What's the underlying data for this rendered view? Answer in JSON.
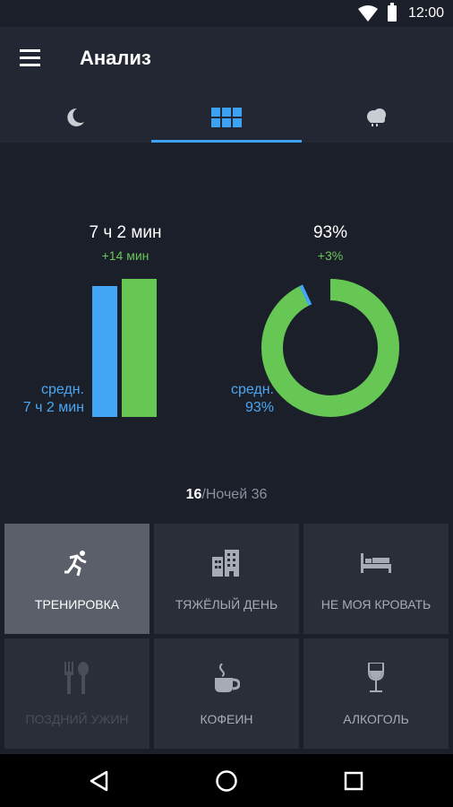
{
  "status_bar": {
    "time": "12:00"
  },
  "app_bar": {
    "title": "Анализ",
    "menu_icon": "hamburger-menu-icon"
  },
  "tabs": [
    {
      "icon": "moon-icon",
      "active": false
    },
    {
      "icon": "grid-icon",
      "active": true
    },
    {
      "icon": "weather-cloud-icon",
      "active": false
    }
  ],
  "duration": {
    "value": "7 ч 2 мин",
    "delta": "+14 мин",
    "avg_label": "средн.",
    "avg_value": "7 ч 2 мин",
    "bars": {
      "average": 0.95,
      "current": 1.0
    }
  },
  "quality": {
    "value": "93%",
    "delta": "+3%",
    "avg_label": "средн.",
    "avg_value": "93%",
    "ring_current": 0.93,
    "ring_average": 0.93
  },
  "nights": {
    "current": "16",
    "rest": "/Ночей 36"
  },
  "tags": [
    {
      "label": "ТРЕНИРОВКА",
      "icon": "running-icon",
      "state": "selected"
    },
    {
      "label": "ТЯЖЁЛЫЙ ДЕНЬ",
      "icon": "office-building-icon",
      "state": "normal"
    },
    {
      "label": "НЕ МОЯ КРОВАТЬ",
      "icon": "bed-icon",
      "state": "normal"
    },
    {
      "label": "ПОЗДНИЙ УЖИН",
      "icon": "fork-spoon-icon",
      "state": "disabled"
    },
    {
      "label": "КОФЕИН",
      "icon": "coffee-cup-icon",
      "state": "normal"
    },
    {
      "label": "АЛКОГОЛЬ",
      "icon": "wine-glass-icon",
      "state": "normal"
    }
  ],
  "colors": {
    "blue": "#42a5f5",
    "green": "#66c755",
    "background": "#1b1f29",
    "bar": "#222733"
  }
}
